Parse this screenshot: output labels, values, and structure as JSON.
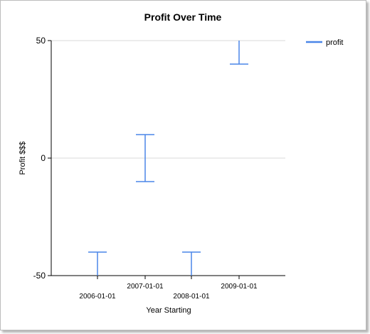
{
  "chart_data": {
    "type": "errorbar",
    "title": "Profit Over Time",
    "xlabel": "Year Starting",
    "ylabel": "Profit $$$",
    "ylim": [
      -50,
      50
    ],
    "yticks": [
      -50,
      0,
      50
    ],
    "grid": true,
    "legend": {
      "placement": "top-right"
    },
    "color": "#4a86e8",
    "categories": [
      "2006-01-01",
      "2007-01-01",
      "2008-01-01",
      "2009-01-01"
    ],
    "series": [
      {
        "name": "profit",
        "low": [
          -50,
          -10,
          -50,
          40
        ],
        "high": [
          -40,
          10,
          -40,
          50
        ]
      }
    ]
  }
}
